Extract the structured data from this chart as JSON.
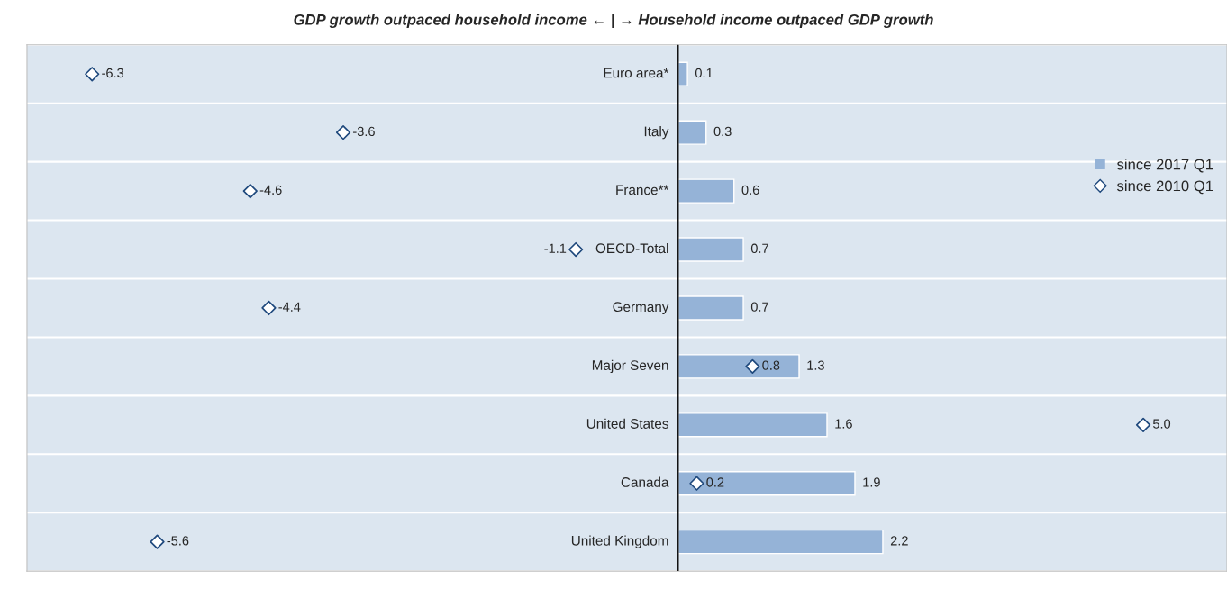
{
  "chart_data": {
    "type": "bar",
    "orientation": "horizontal",
    "title": "GDP growth outpaced household income ← | → Household income outpaced GDP growth",
    "categories": [
      "Euro area*",
      "Italy",
      "France**",
      "OECD-Total",
      "Germany",
      "Major Seven",
      "United States",
      "Canada",
      "United Kingdom"
    ],
    "series": [
      {
        "name": "since 2017 Q1",
        "color": "#95b3d7",
        "values": [
          0.1,
          0.3,
          0.6,
          0.7,
          0.7,
          1.3,
          1.6,
          1.9,
          2.2
        ]
      },
      {
        "name": "since 2010 Q1",
        "type": "scatter",
        "color": "#1f497d",
        "marker": "diamond",
        "values": [
          -6.3,
          -3.6,
          -4.6,
          -1.1,
          -4.4,
          0.8,
          5.0,
          0.2,
          -5.6
        ],
        "value_labels": [
          "-6.3",
          "-3.6",
          "-4.6",
          "-1.1",
          "-4.4",
          "0.8",
          "5.0",
          "0.2",
          "-5.6"
        ]
      }
    ],
    "xlim": [
      -7,
      5.9
    ],
    "data_labels": true,
    "tick_labels": "y",
    "legend": "right"
  }
}
